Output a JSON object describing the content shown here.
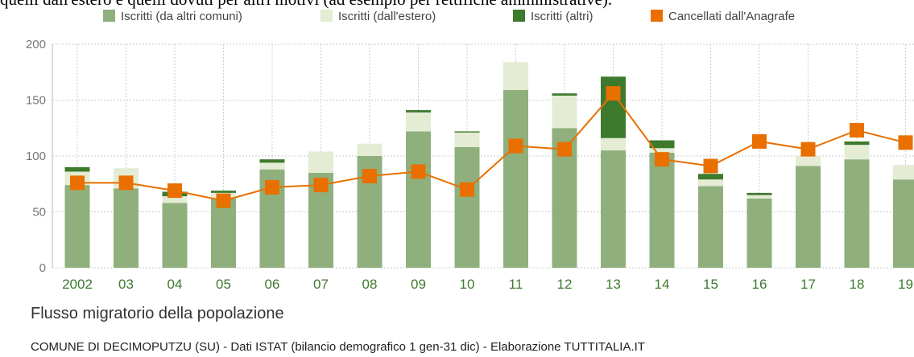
{
  "intro_text": "quelli dall'estero e quelli dovuti per altri motivi (ad esempio per rettifiche amministrative).",
  "chart_data": {
    "type": "bar",
    "stacked": true,
    "title": "Flusso migratorio della popolazione",
    "source": "COMUNE DI DECIMOPUTZU (SU) - Dati ISTAT (bilancio demografico 1 gen-31 dic) - Elaborazione TUTTITALIA.IT",
    "categories": [
      "2002",
      "03",
      "04",
      "05",
      "06",
      "07",
      "08",
      "09",
      "10",
      "11",
      "12",
      "13",
      "14",
      "15",
      "16",
      "17",
      "18",
      "19"
    ],
    "series": [
      {
        "name": "Iscritti (da altri comuni)",
        "color": "#8fb07c",
        "values": [
          74,
          71,
          58,
          62,
          88,
          85,
          100,
          122,
          108,
          159,
          125,
          105,
          103,
          73,
          62,
          91,
          97,
          79
        ]
      },
      {
        "name": "Iscritti (dall'estero)",
        "color": "#e4ecd4",
        "values": [
          12,
          18,
          6,
          5,
          6,
          19,
          11,
          17,
          13,
          25,
          29,
          11,
          4,
          6,
          3,
          9,
          13,
          13
        ]
      },
      {
        "name": "Iscritti (altri)",
        "color": "#3d7a2d",
        "values": [
          4,
          0,
          4,
          2,
          3,
          0,
          0,
          2,
          1,
          0,
          2,
          55,
          7,
          5,
          2,
          0,
          3,
          0
        ]
      },
      {
        "name": "Cancellati dall'Anagrafe",
        "color": "#e86f00",
        "type": "line",
        "values": [
          76,
          76,
          69,
          60,
          72,
          74,
          82,
          86,
          70,
          109,
          106,
          156,
          97,
          91,
          113,
          106,
          123,
          112
        ]
      }
    ],
    "ylim": [
      0,
      200
    ],
    "yticks": [
      0,
      50,
      100,
      150,
      200
    ],
    "grid": true,
    "legend": "top"
  }
}
